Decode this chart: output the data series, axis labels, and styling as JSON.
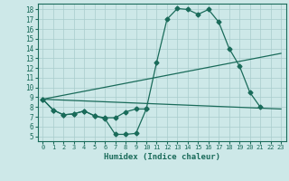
{
  "xlabel": "Humidex (Indice chaleur)",
  "background_color": "#cde8e8",
  "line_color": "#1a6b5a",
  "grid_color": "#a8cccc",
  "xlim": [
    -0.5,
    23.5
  ],
  "ylim": [
    4.5,
    18.6
  ],
  "xticks": [
    0,
    1,
    2,
    3,
    4,
    5,
    6,
    7,
    8,
    9,
    10,
    11,
    12,
    13,
    14,
    15,
    16,
    17,
    18,
    19,
    20,
    21,
    22,
    23
  ],
  "yticks": [
    5,
    6,
    7,
    8,
    9,
    10,
    11,
    12,
    13,
    14,
    15,
    16,
    17,
    18
  ],
  "line1_x": [
    0,
    1,
    2,
    3,
    4,
    5,
    6,
    7,
    8,
    9,
    10,
    11,
    12,
    13,
    14,
    15,
    16,
    17,
    18,
    19,
    20,
    21
  ],
  "line1_y": [
    8.8,
    7.7,
    7.2,
    7.3,
    7.6,
    7.1,
    6.8,
    5.2,
    5.2,
    5.3,
    7.8,
    12.6,
    17.0,
    18.1,
    18.0,
    17.5,
    18.0,
    16.7,
    14.0,
    12.2,
    9.5,
    8.0
  ],
  "line2_x": [
    0,
    23
  ],
  "line2_y": [
    8.8,
    7.8
  ],
  "line3_x": [
    0,
    23
  ],
  "line3_y": [
    8.8,
    13.5
  ],
  "line4_x": [
    0,
    1,
    2,
    3,
    4,
    5,
    6,
    7,
    8,
    9,
    10
  ],
  "line4_y": [
    8.8,
    7.7,
    7.2,
    7.3,
    7.6,
    7.1,
    6.9,
    6.9,
    7.5,
    7.8,
    7.8
  ]
}
